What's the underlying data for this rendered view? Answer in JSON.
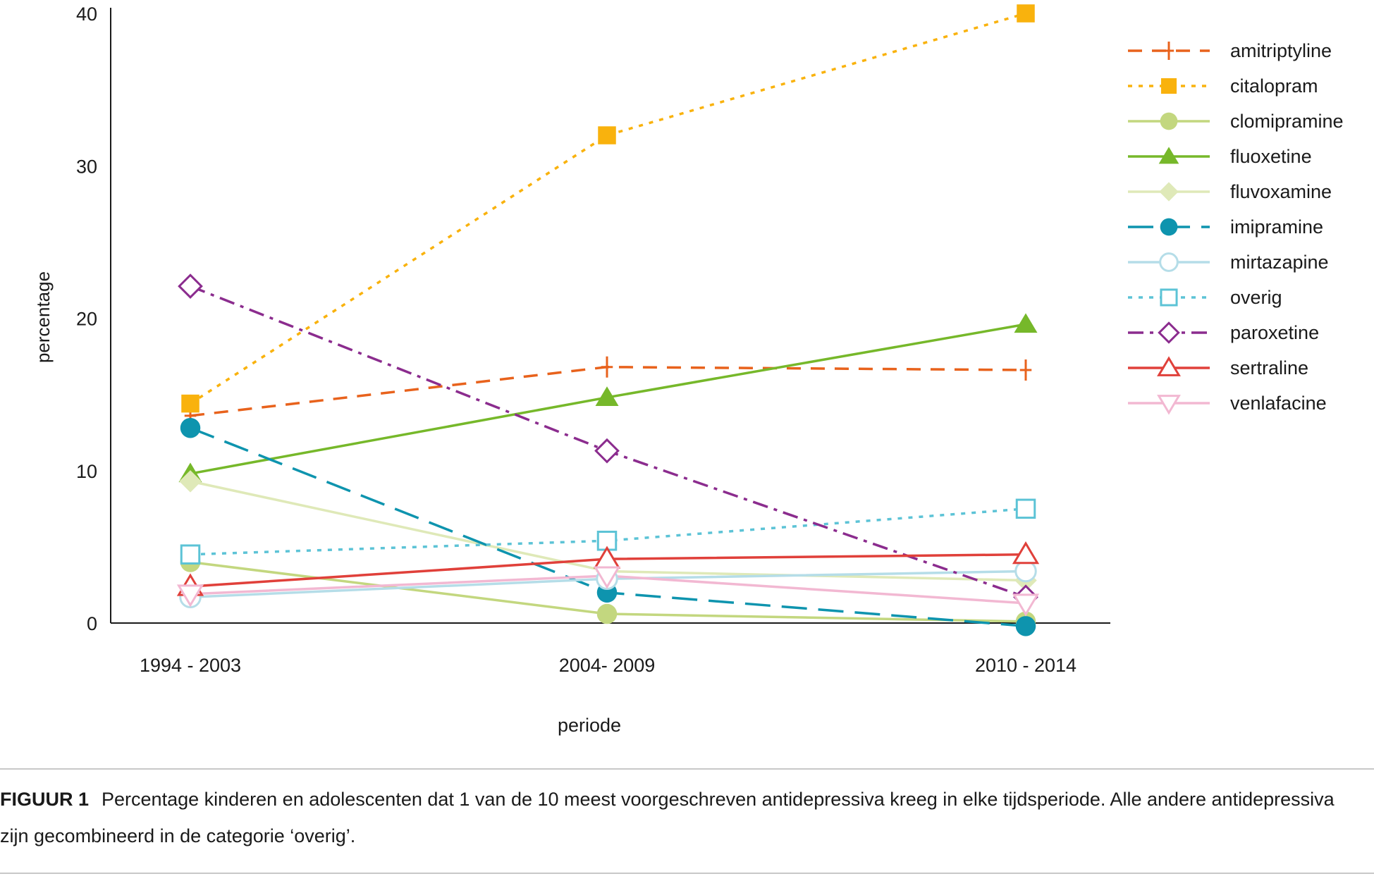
{
  "chart_data": {
    "type": "line",
    "title": "",
    "xlabel": "periode",
    "ylabel": "percentage",
    "categories": [
      "1994 - 2003",
      "2004- 2009",
      "2010 - 2014"
    ],
    "yticks": [
      0,
      10,
      20,
      30,
      40
    ],
    "ylim": [
      0,
      40
    ],
    "grid": false,
    "legend_position": "top-right",
    "series": [
      {
        "name": "amitriptyline",
        "color": "#e8621c",
        "dash": "dashed",
        "marker": "plus",
        "values": [
          13.6,
          16.8,
          16.6
        ]
      },
      {
        "name": "citalopram",
        "color": "#f9b20d",
        "dash": "dotted",
        "marker": "square-filled",
        "values": [
          14.4,
          32,
          40
        ]
      },
      {
        "name": "clomipramine",
        "color": "#c3d77f",
        "dash": "solid",
        "marker": "circle-filled",
        "values": [
          4,
          0.6,
          0.1
        ]
      },
      {
        "name": "fluoxetine",
        "color": "#76b82a",
        "dash": "solid",
        "marker": "triangle-filled",
        "values": [
          9.8,
          14.8,
          19.6
        ]
      },
      {
        "name": "fluvoxamine",
        "color": "#dfe9b8",
        "dash": "solid",
        "marker": "diamond-filled",
        "values": [
          9.3,
          3.4,
          2.8
        ]
      },
      {
        "name": "imipramine",
        "color": "#0e94ae",
        "dash": "longdash",
        "marker": "circle-filled",
        "values": [
          12.8,
          2,
          -0.2
        ]
      },
      {
        "name": "mirtazapine",
        "color": "#b5dde8",
        "dash": "solid",
        "marker": "circle-open",
        "values": [
          1.7,
          2.9,
          3.4
        ]
      },
      {
        "name": "overig",
        "color": "#5cc3d6",
        "dash": "dotted",
        "marker": "square-open",
        "values": [
          4.5,
          5.4,
          7.5
        ]
      },
      {
        "name": "paroxetine",
        "color": "#8b2c8e",
        "dash": "dashdot",
        "marker": "diamond-open",
        "values": [
          22.1,
          11.3,
          1.7
        ]
      },
      {
        "name": "sertraline",
        "color": "#e0403a",
        "dash": "solid",
        "marker": "triangle-open",
        "values": [
          2.4,
          4.2,
          4.5
        ]
      },
      {
        "name": "venlafacine",
        "color": "#f2b8d2",
        "dash": "solid",
        "marker": "triangle-down-open",
        "values": [
          1.9,
          3.1,
          1.3
        ]
      }
    ]
  },
  "caption": {
    "label": "FIGUUR 1",
    "text": "Percentage kinderen en adolescenten dat 1 van de 10 meest voorgeschreven antidepressiva kreeg in elke tijdsperiode. Alle andere antidepressiva zijn gecombineerd in de categorie ‘overig’."
  }
}
